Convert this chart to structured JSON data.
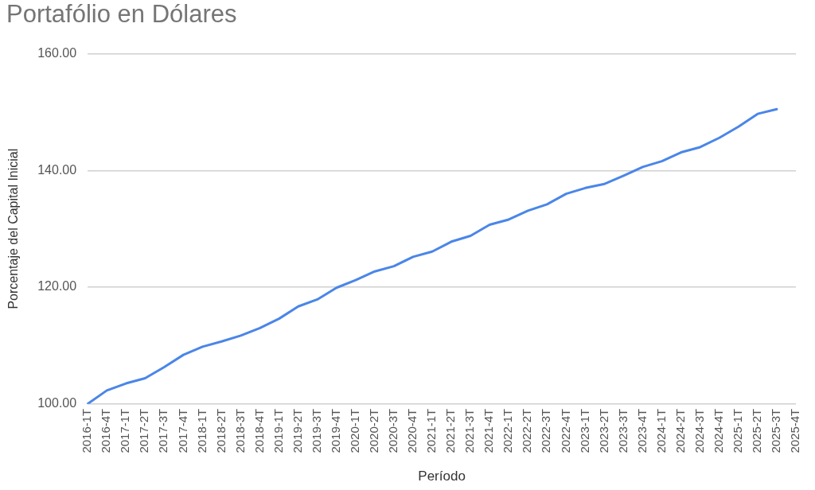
{
  "chart_data": {
    "type": "line",
    "title": "Portafólio en Dólares",
    "xlabel": "Período",
    "ylabel": "Porcentaje del Capital Inicial",
    "categories": [
      "2016-1T",
      "2016-4T",
      "2017-1T",
      "2017-2T",
      "2017-3T",
      "2017-4T",
      "2018-1T",
      "2018-2T",
      "2018-3T",
      "2018-4T",
      "2019-1T",
      "2019-2T",
      "2019-3T",
      "2019-4T",
      "2020-1T",
      "2020-2T",
      "2020-3T",
      "2020-4T",
      "2021-1T",
      "2021-2T",
      "2021-3T",
      "2021-4T",
      "2022-1T",
      "2022-2T",
      "2022-3T",
      "2022-4T",
      "2023-1T",
      "2023-2T",
      "2023-3T",
      "2023-4T",
      "2024-1T",
      "2024-2T",
      "2024-3T",
      "2024-4T",
      "2025-1T",
      "2025-2T",
      "2025-3T",
      "2025-4T"
    ],
    "series": [
      {
        "color": "#4a86e8",
        "values": [
          100,
          102.3,
          103.5,
          104.4,
          106.3,
          108.4,
          109.8,
          110.7,
          111.7,
          113.0,
          114.6,
          116.7,
          117.9,
          119.9,
          121.2,
          122.7,
          123.6,
          125.2,
          126.1,
          127.8,
          128.8,
          130.7,
          131.6,
          133.1,
          134.2,
          136.0,
          137.0,
          137.7,
          139.1,
          140.6,
          141.6,
          143.1,
          144.0,
          145.6,
          147.5,
          149.7,
          150.5,
          null
        ]
      }
    ],
    "ylim": [
      100,
      160
    ],
    "yticks": [
      {
        "value": 100,
        "label": "100.00"
      },
      {
        "value": 120,
        "label": "120.00"
      },
      {
        "value": 140,
        "label": "140.00"
      },
      {
        "value": 160,
        "label": "160.00"
      }
    ],
    "grid": "y",
    "legend": false,
    "marker": "none",
    "line_style": "solid"
  }
}
